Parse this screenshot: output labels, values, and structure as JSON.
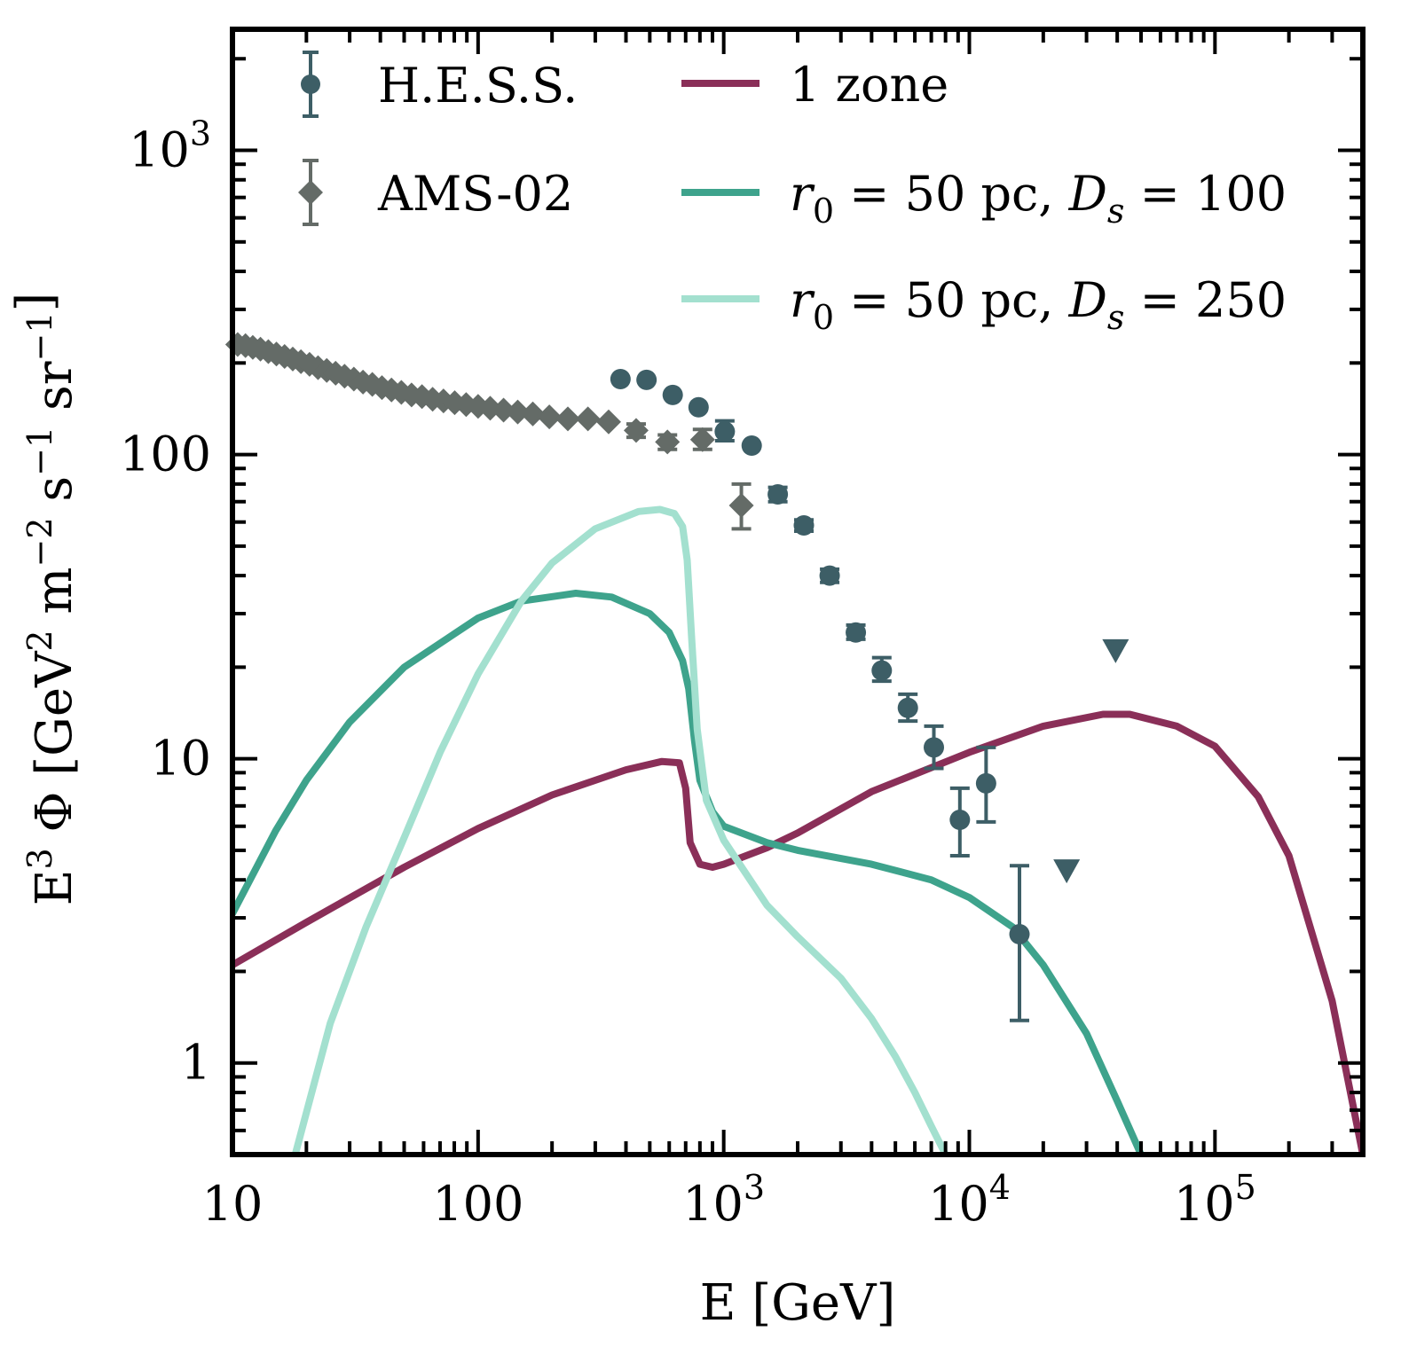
{
  "colors": {
    "hess": "#3d5e66",
    "ams": "#646b67",
    "one_zone": "#8a2f58",
    "r0_ds100": "#3ea38c",
    "r0_ds250": "#a3e0cf",
    "axis": "#000000"
  },
  "chart_data": {
    "type": "scatter",
    "x_scale": "log",
    "y_scale": "log",
    "xlim": [
      10,
      400000
    ],
    "ylim": [
      0.5,
      2500
    ],
    "xlabel_text": "E [GeV]",
    "ylabel": {
      "lead": "E",
      "e_sup": "3",
      "phi": "Φ",
      "bracket_open": "[GeV",
      "gev_sup": "2",
      "m": "m",
      "m_sup": "−2",
      "s": "s",
      "s_sup": "−1",
      "sr": "sr",
      "sr_sup": "−1",
      "bracket_close": "]"
    },
    "x_ticks": [
      {
        "value": 10,
        "base": "10",
        "sup": ""
      },
      {
        "value": 100,
        "base": "100",
        "sup": ""
      },
      {
        "value": 1000,
        "base": "10",
        "sup": "3"
      },
      {
        "value": 10000,
        "base": "10",
        "sup": "4"
      },
      {
        "value": 100000,
        "base": "10",
        "sup": "5"
      }
    ],
    "y_ticks": [
      {
        "value": 1,
        "base": "1",
        "sup": ""
      },
      {
        "value": 10,
        "base": "10",
        "sup": ""
      },
      {
        "value": 100,
        "base": "100",
        "sup": ""
      },
      {
        "value": 1000,
        "base": "10",
        "sup": "3"
      }
    ],
    "grid": false,
    "legend_placement": "top",
    "legend": [
      {
        "key": "hess",
        "label": "H.E.S.S.",
        "kind": "circle-errorbar"
      },
      {
        "key": "ams",
        "label": "AMS-02",
        "kind": "diamond-errorbar"
      },
      {
        "key": "one_zone",
        "label": "1 zone",
        "kind": "line"
      },
      {
        "key": "r0_ds100",
        "kind": "line",
        "r": "r",
        "r_sub": "0",
        "eq1": " = 50 pc, ",
        "d": "D",
        "d_sub": "s",
        "eq2": " = 100"
      },
      {
        "key": "r0_ds250",
        "kind": "line",
        "r": "r",
        "r_sub": "0",
        "eq1": " = 50 pc, ",
        "d": "D",
        "d_sub": "s",
        "eq2": " = 250"
      }
    ],
    "series": [
      {
        "name": "AMS-02",
        "key": "ams",
        "type": "scatter",
        "marker": "diamond",
        "points": [
          {
            "x": 10.5,
            "y": 230
          },
          {
            "x": 11.3,
            "y": 228
          },
          {
            "x": 12.1,
            "y": 225
          },
          {
            "x": 13.0,
            "y": 222
          },
          {
            "x": 14.0,
            "y": 218
          },
          {
            "x": 15.1,
            "y": 214
          },
          {
            "x": 16.3,
            "y": 210
          },
          {
            "x": 17.6,
            "y": 206
          },
          {
            "x": 19.0,
            "y": 202
          },
          {
            "x": 20.6,
            "y": 198
          },
          {
            "x": 22.3,
            "y": 193
          },
          {
            "x": 24.2,
            "y": 189
          },
          {
            "x": 26.3,
            "y": 185
          },
          {
            "x": 28.6,
            "y": 181
          },
          {
            "x": 31.2,
            "y": 177
          },
          {
            "x": 34.0,
            "y": 173
          },
          {
            "x": 37.1,
            "y": 170
          },
          {
            "x": 40.6,
            "y": 166
          },
          {
            "x": 44.4,
            "y": 163
          },
          {
            "x": 48.7,
            "y": 160
          },
          {
            "x": 53.6,
            "y": 157
          },
          {
            "x": 59.1,
            "y": 155
          },
          {
            "x": 65.3,
            "y": 152
          },
          {
            "x": 72.3,
            "y": 150
          },
          {
            "x": 80.3,
            "y": 148
          },
          {
            "x": 89.4,
            "y": 146
          },
          {
            "x": 100,
            "y": 144
          },
          {
            "x": 112,
            "y": 142
          },
          {
            "x": 127,
            "y": 140
          },
          {
            "x": 145,
            "y": 138
          },
          {
            "x": 167,
            "y": 136
          },
          {
            "x": 195,
            "y": 133
          },
          {
            "x": 232,
            "y": 131
          },
          {
            "x": 280,
            "y": 131
          },
          {
            "x": 340,
            "y": 128
          },
          {
            "x": 440,
            "y": 120,
            "ylo": 114,
            "yhi": 126
          },
          {
            "x": 590,
            "y": 110,
            "ylo": 104,
            "yhi": 116
          },
          {
            "x": 820,
            "y": 112,
            "ylo": 104,
            "yhi": 121
          },
          {
            "x": 1180,
            "y": 68,
            "ylo": 57,
            "yhi": 80
          }
        ]
      },
      {
        "name": "H.E.S.S.",
        "key": "hess",
        "type": "scatter",
        "marker": "circle",
        "points": [
          {
            "x": 380,
            "y": 177
          },
          {
            "x": 485,
            "y": 176
          },
          {
            "x": 620,
            "y": 157
          },
          {
            "x": 790,
            "y": 143
          },
          {
            "x": 1010,
            "y": 119,
            "ylo": 111,
            "yhi": 129
          },
          {
            "x": 1300,
            "y": 107
          },
          {
            "x": 1660,
            "y": 74,
            "ylo": 70,
            "yhi": 78
          },
          {
            "x": 2120,
            "y": 58.5,
            "ylo": 56,
            "yhi": 61
          },
          {
            "x": 2700,
            "y": 40,
            "ylo": 38,
            "yhi": 42
          },
          {
            "x": 3450,
            "y": 26,
            "ylo": 24.7,
            "yhi": 27.5
          },
          {
            "x": 4400,
            "y": 19.5,
            "ylo": 18,
            "yhi": 21.5
          },
          {
            "x": 5620,
            "y": 14.7,
            "ylo": 13.3,
            "yhi": 16.3
          },
          {
            "x": 7170,
            "y": 10.9,
            "ylo": 9.3,
            "yhi": 12.8
          },
          {
            "x": 9150,
            "y": 6.3,
            "ylo": 4.8,
            "yhi": 8.0
          },
          {
            "x": 11700,
            "y": 8.3,
            "ylo": 6.2,
            "yhi": 10.9
          },
          {
            "x": 16000,
            "y": 2.65,
            "ylo": 1.38,
            "yhi": 4.45
          }
        ],
        "upper_limits": [
          {
            "x": 24900,
            "y": 4.25
          },
          {
            "x": 39400,
            "y": 22.5
          }
        ]
      },
      {
        "name": "1 zone",
        "key": "one_zone",
        "type": "line",
        "points": [
          {
            "x": 10,
            "y": 2.1
          },
          {
            "x": 20,
            "y": 2.9
          },
          {
            "x": 50,
            "y": 4.4
          },
          {
            "x": 100,
            "y": 5.9
          },
          {
            "x": 200,
            "y": 7.6
          },
          {
            "x": 400,
            "y": 9.2
          },
          {
            "x": 560,
            "y": 9.8
          },
          {
            "x": 660,
            "y": 9.7
          },
          {
            "x": 700,
            "y": 8.0
          },
          {
            "x": 730,
            "y": 5.3
          },
          {
            "x": 800,
            "y": 4.5
          },
          {
            "x": 900,
            "y": 4.4
          },
          {
            "x": 1000,
            "y": 4.5
          },
          {
            "x": 1500,
            "y": 5.1
          },
          {
            "x": 2000,
            "y": 5.7
          },
          {
            "x": 4000,
            "y": 7.8
          },
          {
            "x": 10000,
            "y": 10.5
          },
          {
            "x": 20000,
            "y": 12.8
          },
          {
            "x": 35000,
            "y": 14.0
          },
          {
            "x": 45000,
            "y": 14.0
          },
          {
            "x": 70000,
            "y": 12.8
          },
          {
            "x": 100000,
            "y": 11.0
          },
          {
            "x": 150000,
            "y": 7.5
          },
          {
            "x": 200000,
            "y": 4.8
          },
          {
            "x": 300000,
            "y": 1.6
          },
          {
            "x": 400000,
            "y": 0.5
          }
        ]
      },
      {
        "name": "r0 = 50 pc, Ds = 100",
        "key": "r0_ds100",
        "type": "line",
        "points": [
          {
            "x": 10,
            "y": 3.1
          },
          {
            "x": 15,
            "y": 5.8
          },
          {
            "x": 20,
            "y": 8.5
          },
          {
            "x": 30,
            "y": 13.2
          },
          {
            "x": 50,
            "y": 20
          },
          {
            "x": 100,
            "y": 29
          },
          {
            "x": 150,
            "y": 33
          },
          {
            "x": 250,
            "y": 35
          },
          {
            "x": 350,
            "y": 34
          },
          {
            "x": 500,
            "y": 30
          },
          {
            "x": 600,
            "y": 26
          },
          {
            "x": 680,
            "y": 21
          },
          {
            "x": 720,
            "y": 17
          },
          {
            "x": 760,
            "y": 11.5
          },
          {
            "x": 800,
            "y": 8.5
          },
          {
            "x": 900,
            "y": 6.7
          },
          {
            "x": 1000,
            "y": 6.0
          },
          {
            "x": 1500,
            "y": 5.3
          },
          {
            "x": 2000,
            "y": 5.0
          },
          {
            "x": 4000,
            "y": 4.5
          },
          {
            "x": 7000,
            "y": 4.0
          },
          {
            "x": 10000,
            "y": 3.5
          },
          {
            "x": 15000,
            "y": 2.8
          },
          {
            "x": 20000,
            "y": 2.1
          },
          {
            "x": 30000,
            "y": 1.25
          },
          {
            "x": 40000,
            "y": 0.75
          },
          {
            "x": 50000,
            "y": 0.5
          }
        ]
      },
      {
        "name": "r0 = 50 pc, Ds = 250",
        "key": "r0_ds250",
        "type": "line",
        "points": [
          {
            "x": 18,
            "y": 0.5
          },
          {
            "x": 25,
            "y": 1.35
          },
          {
            "x": 35,
            "y": 2.8
          },
          {
            "x": 50,
            "y": 5.5
          },
          {
            "x": 70,
            "y": 10.5
          },
          {
            "x": 100,
            "y": 19
          },
          {
            "x": 150,
            "y": 33
          },
          {
            "x": 200,
            "y": 44
          },
          {
            "x": 300,
            "y": 57
          },
          {
            "x": 450,
            "y": 65
          },
          {
            "x": 550,
            "y": 66
          },
          {
            "x": 630,
            "y": 64
          },
          {
            "x": 680,
            "y": 58
          },
          {
            "x": 710,
            "y": 45
          },
          {
            "x": 740,
            "y": 25
          },
          {
            "x": 780,
            "y": 12.5
          },
          {
            "x": 850,
            "y": 7.3
          },
          {
            "x": 1000,
            "y": 5.4
          },
          {
            "x": 1500,
            "y": 3.3
          },
          {
            "x": 2000,
            "y": 2.6
          },
          {
            "x": 3000,
            "y": 1.9
          },
          {
            "x": 4000,
            "y": 1.4
          },
          {
            "x": 5000,
            "y": 1.05
          },
          {
            "x": 6000,
            "y": 0.8
          },
          {
            "x": 7000,
            "y": 0.62
          },
          {
            "x": 8000,
            "y": 0.5
          }
        ]
      }
    ]
  }
}
